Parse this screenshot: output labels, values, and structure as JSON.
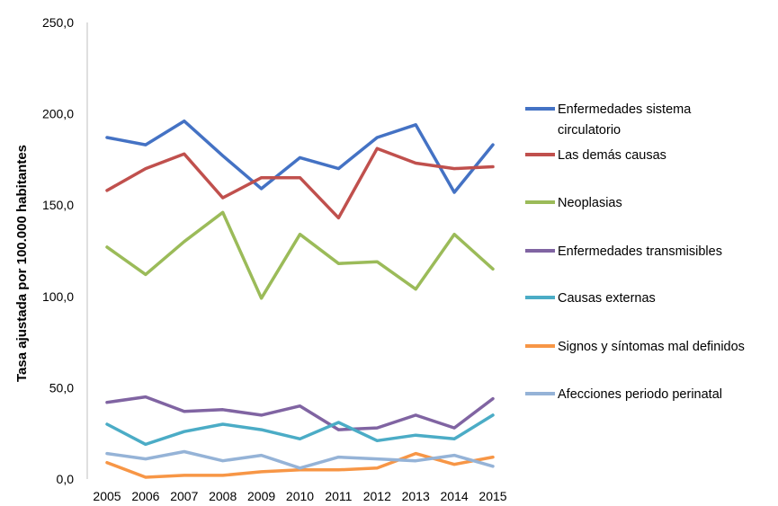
{
  "chart_data": {
    "type": "line",
    "ylabel": "Tasa ajustada por 100.000 habitantes",
    "ylim": [
      0,
      250
    ],
    "y_ticks": [
      "0,0",
      "50,0",
      "100,0",
      "150,0",
      "200,0",
      "250,0"
    ],
    "categories": [
      "2005",
      "2006",
      "2007",
      "2008",
      "2009",
      "2010",
      "2011",
      "2012",
      "2013",
      "2014",
      "2015"
    ],
    "grid": false,
    "legend_position": "right",
    "series": [
      {
        "name": "Enfermedades sistema circulatorio",
        "color": "#4472C4",
        "values": [
          187,
          183,
          196,
          177,
          159,
          176,
          170,
          187,
          194,
          157,
          183
        ]
      },
      {
        "name": "Las demás causas",
        "color": "#C0504D",
        "values": [
          158,
          170,
          178,
          154,
          165,
          165,
          143,
          181,
          173,
          170,
          171
        ]
      },
      {
        "name": "Neoplasias",
        "color": "#9BBB59",
        "values": [
          127,
          112,
          130,
          146,
          99,
          134,
          118,
          119,
          104,
          134,
          115
        ]
      },
      {
        "name": "Enfermedades transmisibles",
        "color": "#8064A2",
        "values": [
          42,
          45,
          37,
          38,
          35,
          40,
          27,
          28,
          35,
          28,
          44
        ]
      },
      {
        "name": "Causas externas",
        "color": "#4BACC6",
        "values": [
          30,
          19,
          26,
          30,
          27,
          22,
          31,
          21,
          24,
          22,
          35
        ]
      },
      {
        "name": "Signos y síntomas mal definidos",
        "color": "#F79646",
        "values": [
          9,
          1,
          2,
          2,
          4,
          5,
          5,
          6,
          14,
          8,
          12
        ]
      },
      {
        "name": "Afecciones periodo perinatal",
        "color": "#95B3D7",
        "values": [
          14,
          11,
          15,
          10,
          13,
          6,
          12,
          11,
          10,
          13,
          7
        ]
      }
    ]
  }
}
